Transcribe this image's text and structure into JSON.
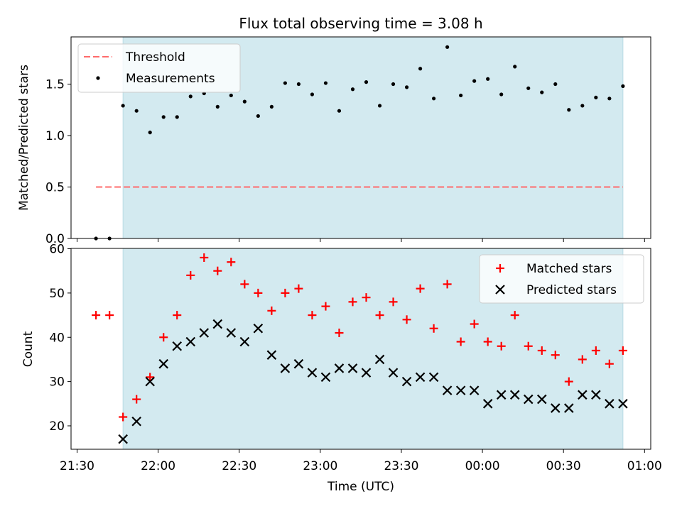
{
  "chart_data": [
    {
      "type": "scatter",
      "title": "Flux total observing time = 3.08 h",
      "xlabel": "",
      "ylabel": "Matched/Predicted stars",
      "ylim": [
        0,
        1.95
      ],
      "yticks": [
        0.0,
        0.5,
        1.0,
        1.5
      ],
      "ytick_labels": [
        "0.0",
        "0.5",
        "1.0",
        "1.5"
      ],
      "grid": false,
      "legend_position": "top-left",
      "observing_window": {
        "start": "21:47",
        "end": "00:52",
        "color": "#add8e6"
      },
      "series": [
        {
          "name": "Threshold",
          "kind": "dashed-line",
          "color": "#ff6b6b",
          "x": [
            "21:37",
            "00:52"
          ],
          "y": [
            0.5,
            0.5
          ]
        },
        {
          "name": "Measurements",
          "kind": "points",
          "color": "#000000",
          "x": [
            "21:37",
            "21:42",
            "21:47",
            "21:52",
            "21:57",
            "22:02",
            "22:07",
            "22:12",
            "22:17",
            "22:22",
            "22:27",
            "22:32",
            "22:37",
            "22:42",
            "22:47",
            "22:52",
            "22:57",
            "23:02",
            "23:07",
            "23:12",
            "23:17",
            "23:22",
            "23:27",
            "23:32",
            "23:37",
            "23:42",
            "23:47",
            "23:52",
            "23:57",
            "00:02",
            "00:07",
            "00:12",
            "00:17",
            "00:22",
            "00:27",
            "00:32",
            "00:37",
            "00:42",
            "00:47",
            "00:52"
          ],
          "y": [
            0.0,
            0.0,
            1.29,
            1.24,
            1.03,
            1.18,
            1.18,
            1.38,
            1.41,
            1.28,
            1.39,
            1.33,
            1.19,
            1.28,
            1.51,
            1.5,
            1.4,
            1.51,
            1.24,
            1.45,
            1.52,
            1.29,
            1.5,
            1.47,
            1.65,
            1.36,
            1.86,
            1.39,
            1.53,
            1.55,
            1.4,
            1.67,
            1.46,
            1.42,
            1.5,
            1.25,
            1.29,
            1.37,
            1.36,
            1.48
          ]
        }
      ]
    },
    {
      "type": "scatter",
      "title": "",
      "xlabel": "Time (UTC)",
      "ylabel": "Count",
      "ylim": [
        15,
        60
      ],
      "yticks": [
        20,
        30,
        40,
        50,
        60
      ],
      "ytick_labels": [
        "20",
        "30",
        "40",
        "50",
        "60"
      ],
      "xtick_labels": [
        "21:30",
        "22:00",
        "22:30",
        "23:00",
        "23:30",
        "00:00",
        "00:30",
        "01:00"
      ],
      "grid": false,
      "legend_position": "top-right",
      "observing_window": {
        "start": "21:47",
        "end": "00:52",
        "color": "#add8e6"
      },
      "series": [
        {
          "name": "Matched stars",
          "marker": "plus",
          "color": "#ff0000",
          "x": [
            "21:37",
            "21:42",
            "21:47",
            "21:52",
            "21:57",
            "22:02",
            "22:07",
            "22:12",
            "22:17",
            "22:22",
            "22:27",
            "22:32",
            "22:37",
            "22:42",
            "22:47",
            "22:52",
            "22:57",
            "23:02",
            "23:07",
            "23:12",
            "23:17",
            "23:22",
            "23:27",
            "23:32",
            "23:37",
            "23:42",
            "23:47",
            "23:52",
            "23:57",
            "00:02",
            "00:07",
            "00:12",
            "00:17",
            "00:22",
            "00:27",
            "00:32",
            "00:37",
            "00:42",
            "00:47",
            "00:52"
          ],
          "y": [
            45,
            45,
            22,
            26,
            31,
            40,
            45,
            54,
            58,
            55,
            57,
            52,
            50,
            46,
            50,
            51,
            45,
            47,
            41,
            48,
            49,
            45,
            48,
            44,
            51,
            42,
            52,
            39,
            43,
            39,
            38,
            45,
            38,
            37,
            36,
            30,
            35,
            37,
            34,
            37
          ]
        },
        {
          "name": "Predicted stars",
          "marker": "x",
          "color": "#000000",
          "x": [
            "21:47",
            "21:52",
            "21:57",
            "22:02",
            "22:07",
            "22:12",
            "22:17",
            "22:22",
            "22:27",
            "22:32",
            "22:37",
            "22:42",
            "22:47",
            "22:52",
            "22:57",
            "23:02",
            "23:07",
            "23:12",
            "23:17",
            "23:22",
            "23:27",
            "23:32",
            "23:37",
            "23:42",
            "23:47",
            "23:52",
            "23:57",
            "00:02",
            "00:07",
            "00:12",
            "00:17",
            "00:22",
            "00:27",
            "00:32",
            "00:37",
            "00:42",
            "00:47",
            "00:52"
          ],
          "y": [
            17,
            21,
            30,
            34,
            38,
            39,
            41,
            43,
            41,
            39,
            42,
            36,
            33,
            34,
            32,
            31,
            33,
            33,
            32,
            35,
            32,
            30,
            31,
            31,
            28,
            28,
            28,
            25,
            27,
            27,
            26,
            26,
            24,
            24,
            27,
            27,
            25,
            25
          ]
        }
      ]
    }
  ]
}
